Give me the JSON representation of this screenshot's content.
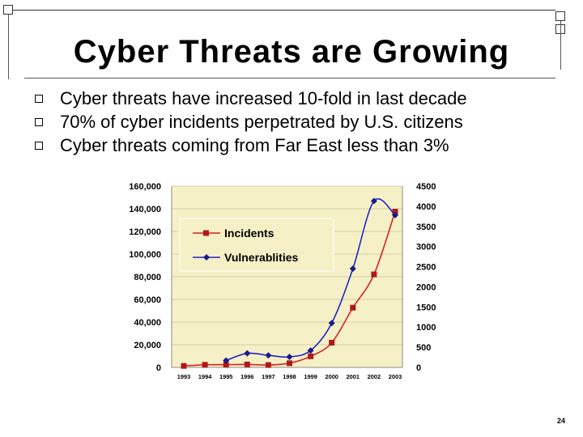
{
  "slide": {
    "title": "Cyber Threats are Growing",
    "bullets": [
      "Cyber threats have increased 10-fold in last decade",
      "70% of cyber incidents perpetrated by U.S. citizens",
      "Cyber threats coming from Far East less than 3%"
    ],
    "page_number": "24"
  },
  "colors": {
    "plot_bg": "#f6f0c6",
    "incidents": "#d42323",
    "incidents_marker": "#b01818",
    "vulnerabilities": "#2323c8",
    "vulnerabilities_marker": "#1a1a8a"
  },
  "chart_data": {
    "type": "line",
    "x": [
      "1993",
      "1994",
      "1995",
      "1996",
      "1997",
      "1998",
      "1999",
      "2000",
      "2001",
      "2002",
      "2003"
    ],
    "y_left_ticks": [
      "0",
      "20,000",
      "40,000",
      "60,000",
      "80,000",
      "100,000",
      "120,000",
      "140,000",
      "160,000"
    ],
    "y_right_ticks": [
      "0",
      "500",
      "1000",
      "1500",
      "2000",
      "2500",
      "3000",
      "3500",
      "4000",
      "4500"
    ],
    "y_left_range": [
      0,
      160000
    ],
    "y_right_range": [
      0,
      4500
    ],
    "legend_placement": "top-left-inside",
    "series": [
      {
        "name": "Incidents",
        "axis": "left",
        "values": [
          1300,
          2300,
          2400,
          2600,
          2100,
          3700,
          9800,
          21800,
          52700,
          82100,
          137500
        ]
      },
      {
        "name": "Vulnerablities",
        "axis": "right",
        "values": [
          null,
          null,
          170,
          350,
          300,
          260,
          420,
          1100,
          2450,
          4130,
          3780
        ]
      }
    ]
  }
}
